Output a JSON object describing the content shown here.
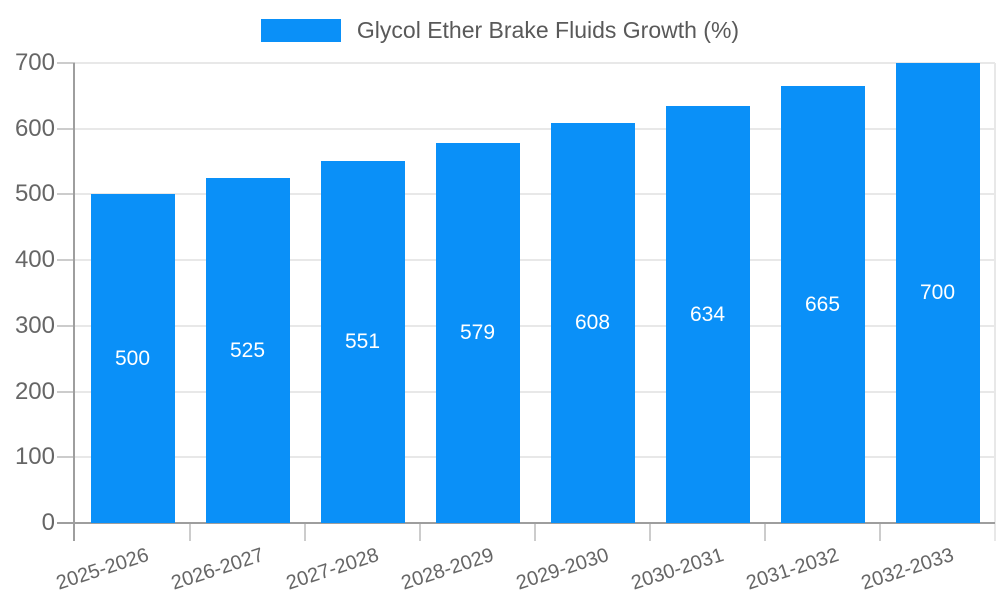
{
  "legend": {
    "label": "Glycol Ether Brake Fluids Growth (%)",
    "swatch_color": "#0a90f8"
  },
  "chart_data": {
    "type": "bar",
    "title": "",
    "categories": [
      "2025-2026",
      "2026-2027",
      "2027-2028",
      "2028-2029",
      "2029-2030",
      "2030-2031",
      "2031-2032",
      "2032-2033"
    ],
    "series": [
      {
        "name": "Glycol Ether Brake Fluids Growth (%)",
        "values": [
          500,
          525,
          551,
          579,
          608,
          634,
          665,
          700
        ]
      }
    ],
    "xlabel": "",
    "ylabel": "",
    "ylim": [
      0,
      700
    ],
    "yticks": [
      0,
      100,
      200,
      300,
      400,
      500,
      600,
      700
    ],
    "grid": true,
    "legend_position": "top-center",
    "bar_color": "#0a90f8",
    "bar_label_color": "#ffffff",
    "axis_color": "#9e9e9e",
    "grid_color": "#e8e8e8",
    "tick_color": "#cccccc",
    "text_color": "#666666"
  }
}
